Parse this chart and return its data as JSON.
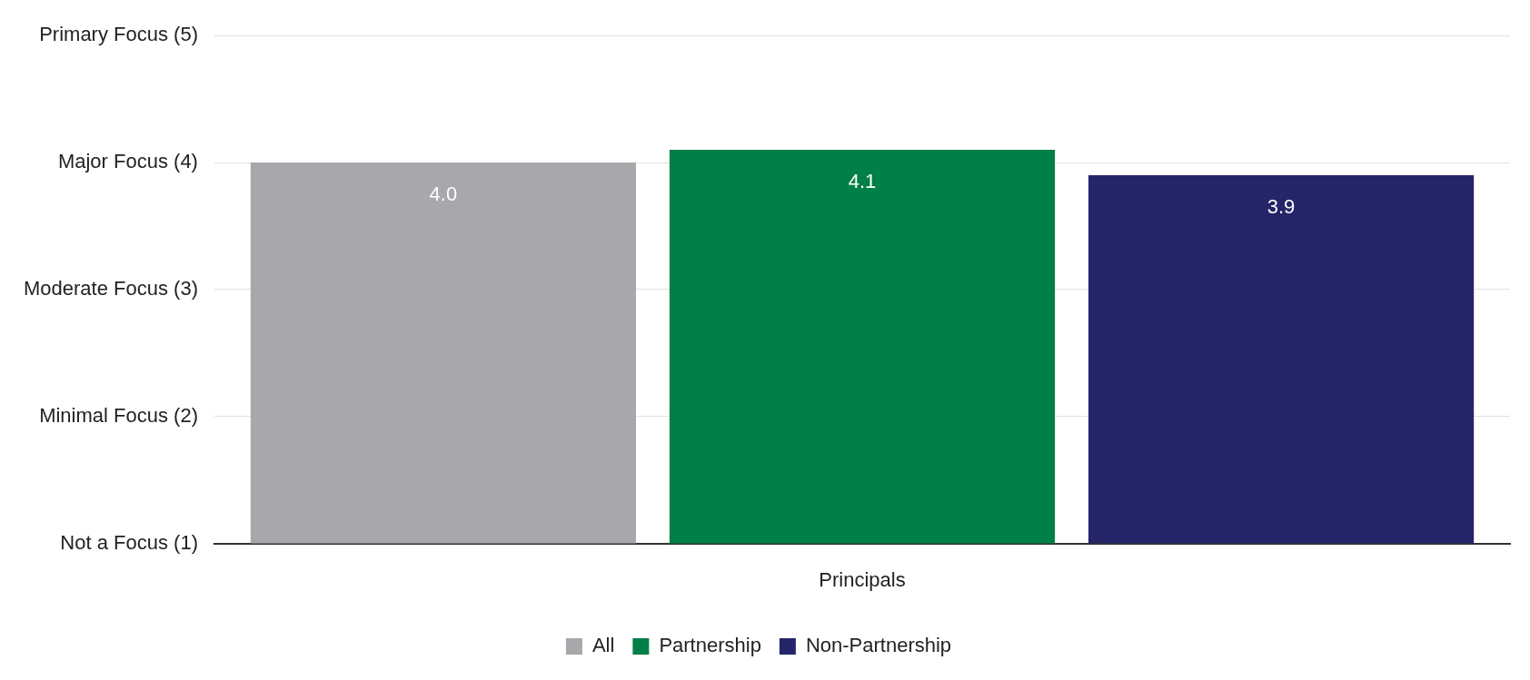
{
  "chart_data": {
    "type": "bar",
    "categories": [
      "Principals"
    ],
    "series": [
      {
        "name": "All",
        "color": "#a7a8ab",
        "values": [
          4.0
        ],
        "value_labels": [
          "4.0"
        ]
      },
      {
        "name": "Partnership",
        "color": "#007f46",
        "values": [
          4.1
        ],
        "value_labels": [
          "4.1"
        ]
      },
      {
        "name": "Non-Partnership",
        "color": "#25256a",
        "values": [
          3.9
        ],
        "value_labels": [
          "3.9"
        ]
      }
    ],
    "ylim": [
      1,
      5
    ],
    "yticks": [
      {
        "value": 1,
        "label": "Not a Focus (1)"
      },
      {
        "value": 2,
        "label": "Minimal Focus (2)"
      },
      {
        "value": 3,
        "label": "Moderate Focus (3)"
      },
      {
        "value": 4,
        "label": "Major Focus (4)"
      },
      {
        "value": 5,
        "label": "Primary Focus (5)"
      }
    ],
    "grid": "y",
    "legend": "bottom"
  }
}
